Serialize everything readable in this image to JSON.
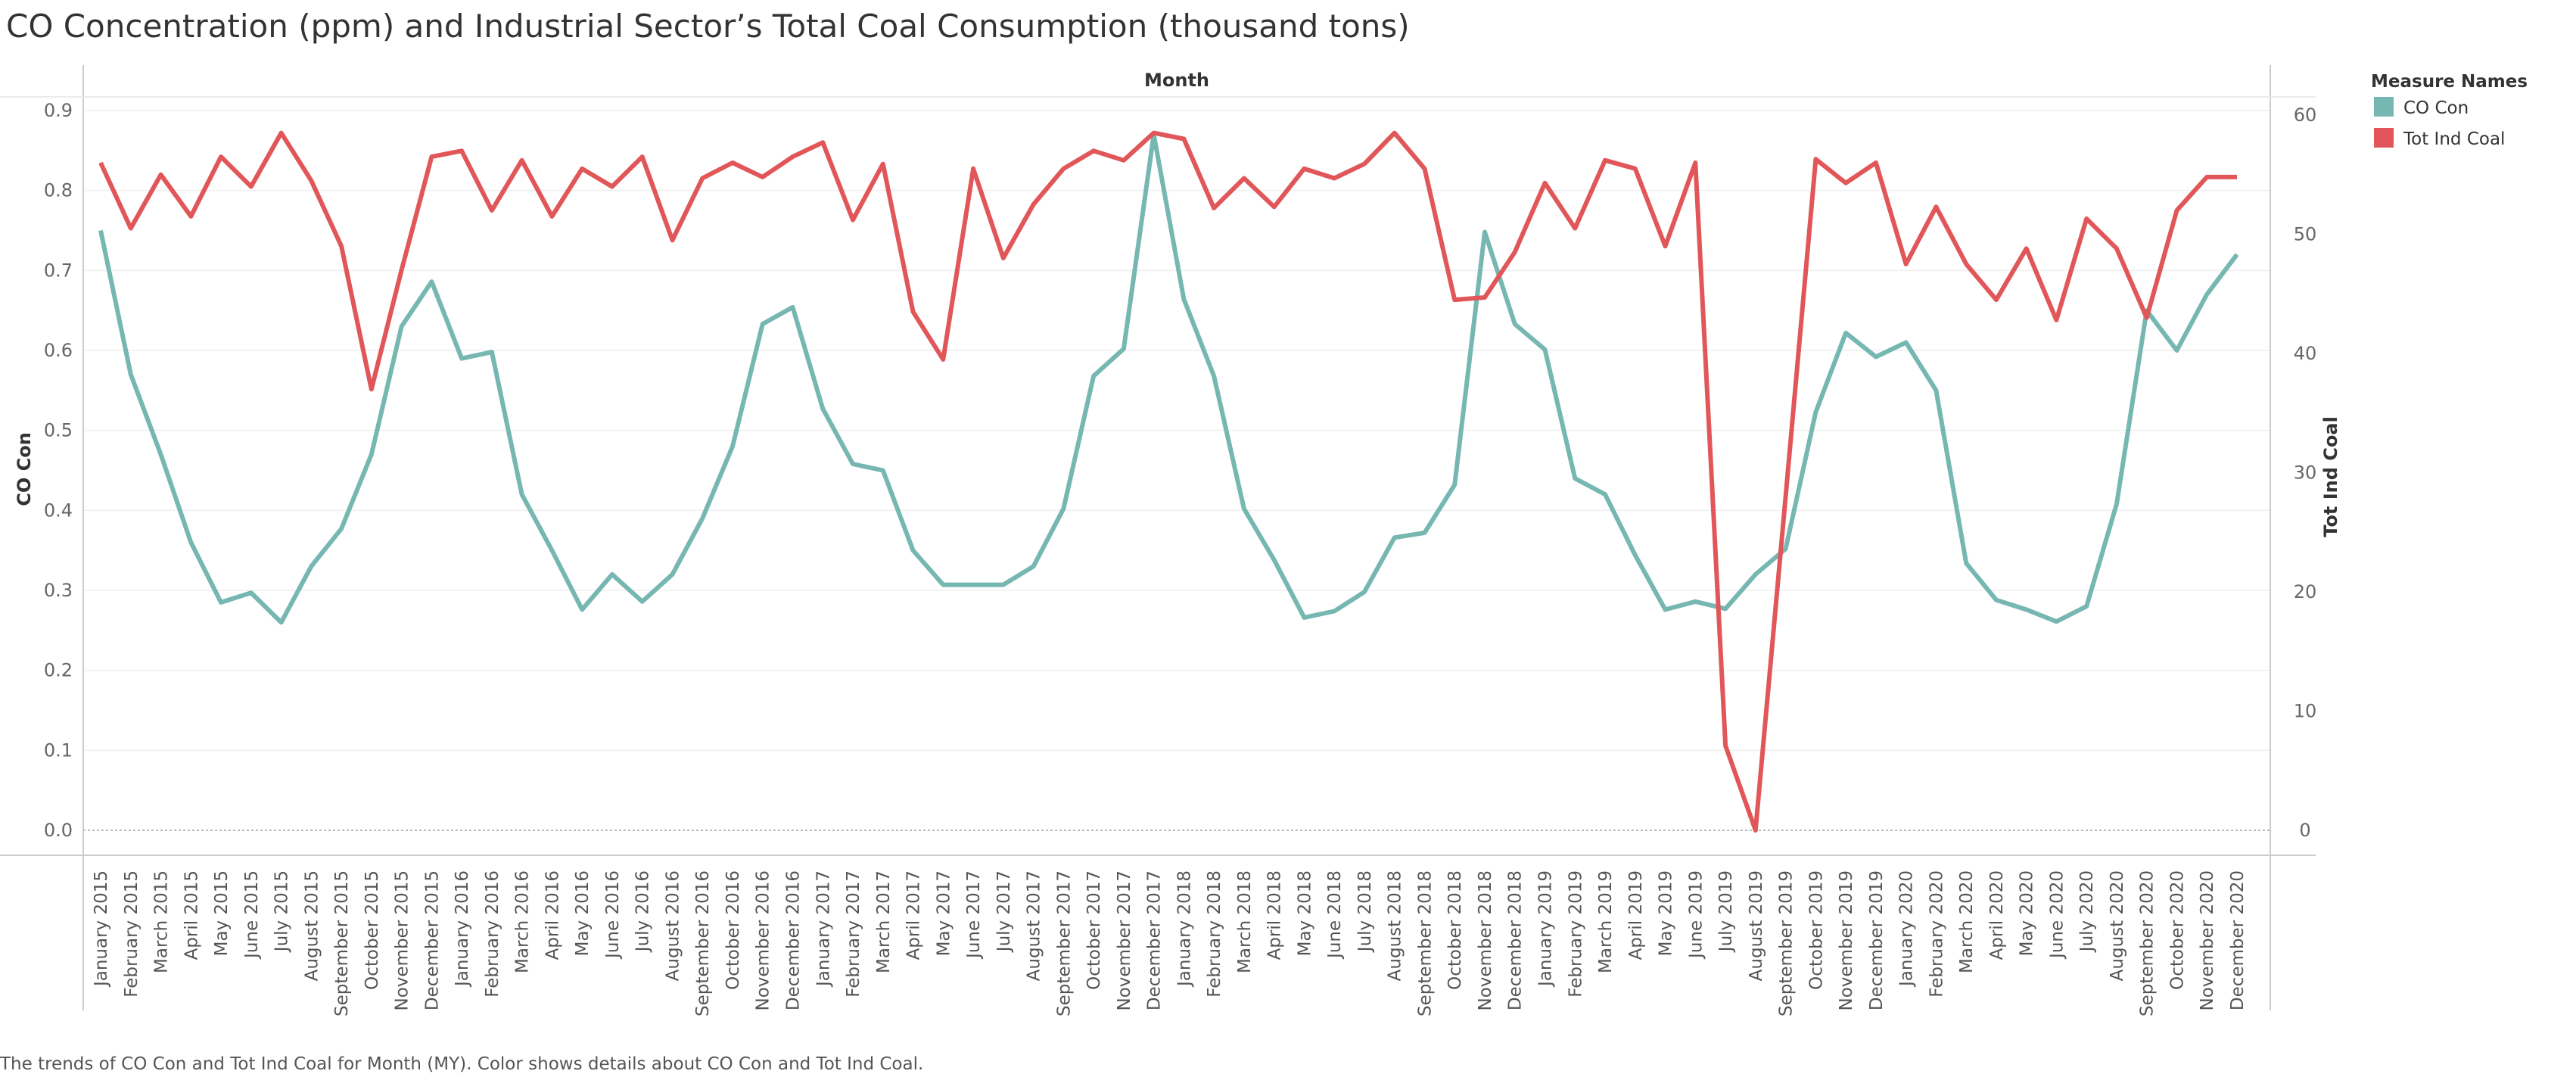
{
  "title": "CO Concentration (ppm) and Industrial Sector’s Total Coal Consumption (thousand tons)",
  "caption": "The trends of CO Con and Tot  Ind  Coal for Month (MY).  Color shows details about CO Con and Tot  Ind  Coal.",
  "colors": {
    "co": "#76b7b2",
    "coal": "#e15759"
  },
  "chart_data": {
    "type": "line",
    "title": "CO Concentration (ppm) and Industrial Sector’s Total Coal Consumption (thousand tons)",
    "xlabel": "Month",
    "ylabel_left": "CO Con",
    "ylabel_right": "Tot  Ind  Coal",
    "ylim_left": [
      0,
      0.9
    ],
    "ylim_right": [
      0,
      60
    ],
    "yticks_left": [
      "0.0",
      "0.1",
      "0.2",
      "0.3",
      "0.4",
      "0.5",
      "0.6",
      "0.7",
      "0.8",
      "0.9"
    ],
    "yticks_right": [
      "0",
      "10",
      "20",
      "30",
      "40",
      "50",
      "60"
    ],
    "grid": true,
    "legend": {
      "title": "Measure Names",
      "placement": "top-right"
    },
    "x": [
      "January 2015",
      "February 2015",
      "March 2015",
      "April 2015",
      "May 2015",
      "June 2015",
      "July 2015",
      "August 2015",
      "September 2015",
      "October 2015",
      "November 2015",
      "December 2015",
      "January 2016",
      "February 2016",
      "March 2016",
      "April 2016",
      "May 2016",
      "June 2016",
      "July 2016",
      "August 2016",
      "September 2016",
      "October 2016",
      "November 2016",
      "December 2016",
      "January 2017",
      "February 2017",
      "March 2017",
      "April 2017",
      "May 2017",
      "June 2017",
      "July 2017",
      "August 2017",
      "September 2017",
      "October 2017",
      "November 2017",
      "December 2017",
      "January 2018",
      "February 2018",
      "March 2018",
      "April 2018",
      "May 2018",
      "June 2018",
      "July 2018",
      "August 2018",
      "September 2018",
      "October 2018",
      "November 2018",
      "December 2018",
      "January 2019",
      "February 2019",
      "March 2019",
      "April 2019",
      "May 2019",
      "June 2019",
      "July 2019",
      "August 2019",
      "September 2019",
      "October 2019",
      "November 2019",
      "December 2019",
      "January 2020",
      "February 2020",
      "March 2020",
      "April 2020",
      "May 2020",
      "June 2020",
      "July 2020",
      "August 2020",
      "September 2020",
      "October 2020",
      "November 2020",
      "December 2020"
    ],
    "series": [
      {
        "name": "CO Con",
        "axis": "left",
        "values": [
          0.75,
          0.57,
          0.47,
          0.36,
          0.285,
          0.297,
          0.26,
          0.33,
          0.377,
          0.47,
          0.63,
          0.686,
          0.59,
          0.598,
          0.42,
          0.35,
          0.276,
          0.32,
          0.286,
          0.32,
          0.39,
          0.48,
          0.633,
          0.654,
          0.527,
          0.458,
          0.45,
          0.35,
          0.307,
          0.307,
          0.307,
          0.33,
          0.402,
          0.568,
          0.602,
          0.87,
          0.664,
          0.568,
          0.402,
          0.338,
          0.266,
          0.274,
          0.298,
          0.366,
          0.372,
          0.432,
          0.748,
          0.633,
          0.601,
          0.44,
          0.42,
          0.344,
          0.276,
          0.286,
          0.277,
          0.32,
          0.352,
          0.523,
          0.622,
          0.592,
          0.61,
          0.55,
          0.334,
          0.288,
          0.276,
          0.261,
          0.28,
          0.408,
          0.65,
          0.6,
          0.67,
          0.72
        ]
      },
      {
        "name": "Tot  Ind  Coal",
        "axis": "right",
        "values": [
          56,
          50.5,
          55,
          51.5,
          56.5,
          54,
          58.5,
          54.5,
          49,
          37,
          47,
          56.5,
          57,
          52,
          56.2,
          51.5,
          55.5,
          54,
          56.5,
          49.5,
          54.7,
          56,
          54.8,
          56.5,
          57.7,
          51.2,
          55.9,
          43.5,
          39.5,
          55.5,
          48,
          52.5,
          55.5,
          57,
          56.2,
          58.5,
          58,
          52.2,
          54.7,
          52.3,
          55.5,
          54.7,
          55.9,
          58.5,
          55.5,
          44.5,
          44.7,
          48.5,
          54.3,
          50.5,
          56.2,
          55.5,
          49,
          56,
          7.1,
          0,
          28,
          56.3,
          54.3,
          56,
          47.5,
          52.3,
          47.5,
          44.5,
          48.8,
          42.8,
          51.3,
          48.8,
          43,
          52,
          54.8,
          54.8
        ]
      }
    ]
  }
}
